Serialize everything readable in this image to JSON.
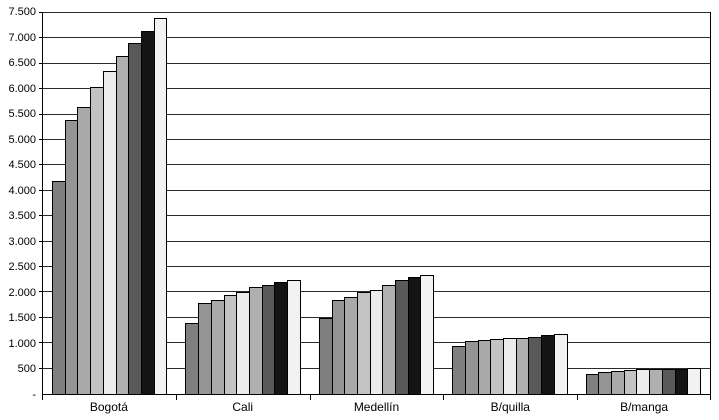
{
  "chart_data": {
    "type": "bar",
    "title": "",
    "xlabel": "",
    "ylabel": "",
    "ylim": [
      0,
      7500
    ],
    "ytick_step": 500,
    "grid": "horizontal",
    "legend": "none",
    "ytick_labels": [
      "-",
      "500",
      "1.000",
      "1.500",
      "2.000",
      "2.500",
      "3.000",
      "3.500",
      "4.000",
      "4.500",
      "5.000",
      "5.500",
      "6.000",
      "6.500",
      "7.000",
      "7.500"
    ],
    "categories": [
      "Bogotá",
      "Cali",
      "Medellín",
      "B/quilla",
      "B/manga"
    ],
    "bar_colors": [
      "#7f7f7f",
      "#959595",
      "#a9a9a9",
      "#c3c3c3",
      "#ececec",
      "#b0b0b0",
      "#595959",
      "#141414",
      "#f2f2f2"
    ],
    "groups": [
      {
        "label": "Bogotá",
        "values": [
          4200,
          5400,
          5650,
          6050,
          6350,
          6650,
          6900,
          7150,
          7400
        ]
      },
      {
        "label": "Cali",
        "values": [
          1400,
          1800,
          1850,
          1950,
          2000,
          2100,
          2150,
          2200,
          2250
        ]
      },
      {
        "label": "Medellín",
        "values": [
          1500,
          1850,
          1900,
          2000,
          2050,
          2150,
          2250,
          2300,
          2350
        ]
      },
      {
        "label": "B/quilla",
        "values": [
          950,
          1050,
          1070,
          1080,
          1100,
          1110,
          1130,
          1160,
          1180
        ]
      },
      {
        "label": "B/manga",
        "values": [
          400,
          430,
          460,
          480,
          490,
          500,
          500,
          500,
          510
        ]
      }
    ]
  }
}
